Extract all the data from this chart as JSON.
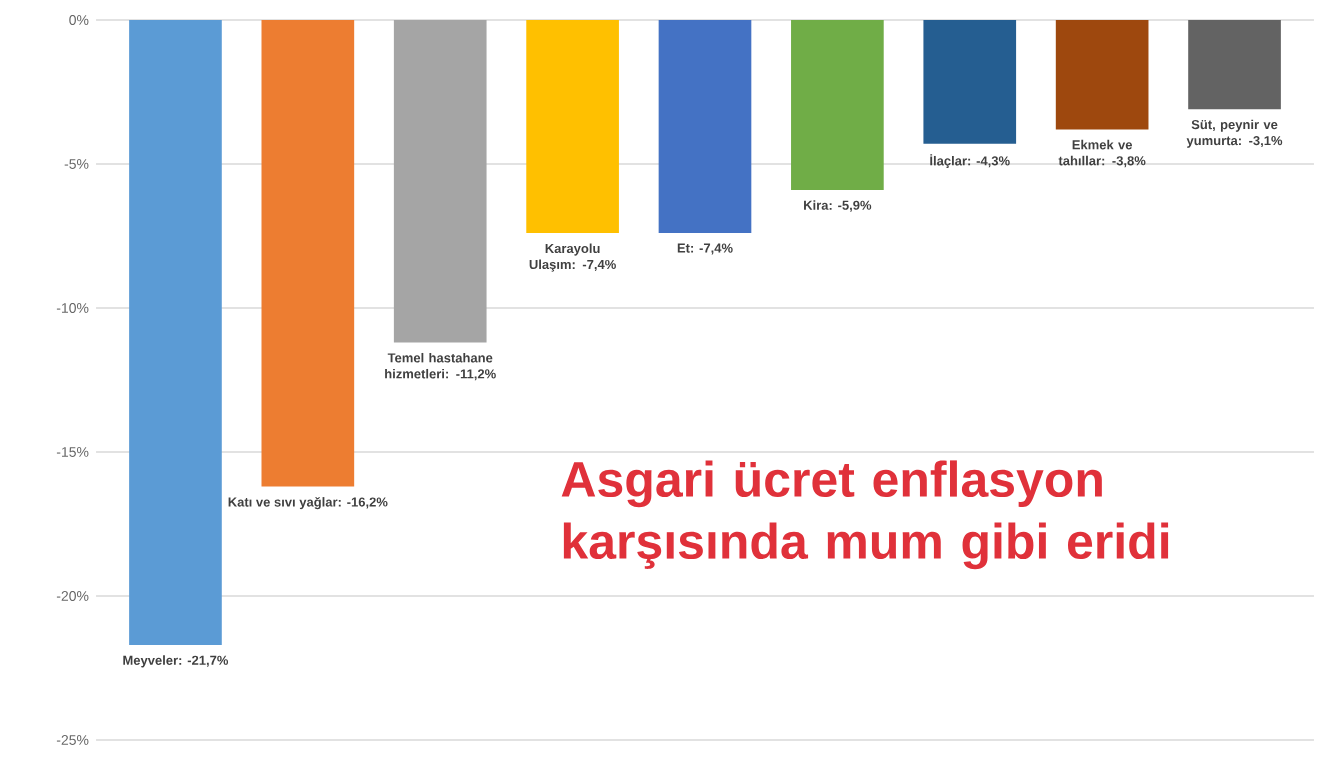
{
  "chart_data": {
    "type": "bar",
    "title": "Asgari ücret enflasyon karşısında mum gibi eridi",
    "categories": [
      null,
      null,
      null,
      null,
      null,
      null,
      null,
      null,
      null
    ],
    "values": [
      -21.7,
      -16.2,
      -11.2,
      -7.4,
      -7.4,
      -5.9,
      -4.3,
      -3.8,
      -3.1
    ],
    "colors": [
      "#5b9bd5",
      "#ed7d31",
      "#a5a5a5",
      "#ffc000",
      "#4472c4",
      "#70ad47",
      "#255e91",
      "#9e480e",
      "#636363"
    ],
    "value_labels": [
      "Meyveler: -21,7%",
      "Katı ve sıvı yağlar: -16,2%",
      "Temel hastahane hizmetleri: -11,2%",
      "Karayolu Ulaşım: -7,4%",
      "Et: -7,4%",
      "Kira: -5,9%",
      "İlaçlar: -4,3%",
      "Ekmek ve tahıllar: -3,8%",
      "Süt, peynir ve yumurta: -3,1%"
    ],
    "ylim": [
      -25,
      0
    ],
    "yticks": [
      {
        "value": 0,
        "label": "0%"
      },
      {
        "value": -5,
        "label": "-5%"
      },
      {
        "value": -10,
        "label": "-10%"
      },
      {
        "value": -15,
        "label": "-15%"
      },
      {
        "value": -20,
        "label": "-20%"
      },
      {
        "value": -25,
        "label": "-25%"
      }
    ],
    "grid": "y"
  }
}
